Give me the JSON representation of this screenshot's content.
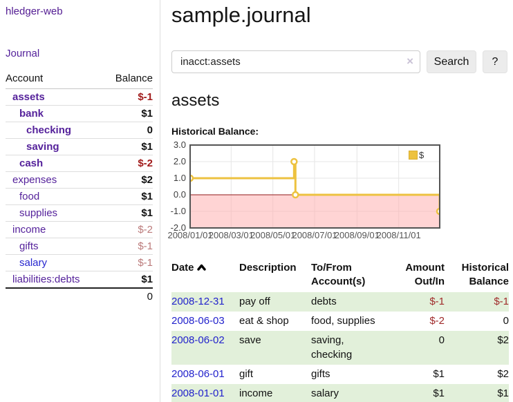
{
  "app": {
    "title": "hledger-web"
  },
  "sidebar": {
    "journal_link": "Journal",
    "accounts_table": {
      "headers": {
        "account": "Account",
        "balance": "Balance"
      },
      "rows": [
        {
          "name": "assets",
          "indent": 1,
          "bold": true,
          "balance": "$-1",
          "style": "neg"
        },
        {
          "name": "bank",
          "indent": 2,
          "bold": true,
          "balance": "$1",
          "style": "pos"
        },
        {
          "name": "checking",
          "indent": 3,
          "bold": true,
          "balance": "0",
          "style": "pos"
        },
        {
          "name": "saving",
          "indent": 3,
          "bold": true,
          "balance": "$1",
          "style": "pos"
        },
        {
          "name": "cash",
          "indent": 2,
          "bold": true,
          "balance": "$-2",
          "style": "neg"
        },
        {
          "name": "expenses",
          "indent": 1,
          "bold": false,
          "balance": "$2",
          "style": "pos"
        },
        {
          "name": "food",
          "indent": 2,
          "bold": false,
          "balance": "$1",
          "style": "pos"
        },
        {
          "name": "supplies",
          "indent": 2,
          "bold": false,
          "balance": "$1",
          "style": "pos"
        },
        {
          "name": "income",
          "indent": 1,
          "bold": false,
          "balance": "$-2",
          "style": "negsoft"
        },
        {
          "name": "gifts",
          "indent": 2,
          "bold": false,
          "balance": "$-1",
          "style": "negsoft"
        },
        {
          "name": "salary",
          "indent": 2,
          "bold": false,
          "balance": "$-1",
          "style": "negsoft",
          "link_color": "blue"
        },
        {
          "name": "liabilities:debts",
          "indent": 1,
          "bold": false,
          "balance": "$1",
          "style": "pos"
        }
      ],
      "total": "0"
    }
  },
  "main": {
    "title": "sample.journal",
    "search": {
      "value": "inacct:assets",
      "clear_icon": "×",
      "button_label": "Search",
      "help_label": "?"
    },
    "account_heading": "assets",
    "chart_label": "Historical Balance:"
  },
  "chart_data": {
    "type": "line",
    "title": "Historical Balance",
    "step": true,
    "series": [
      {
        "name": "$",
        "color": "#edc240",
        "points": [
          {
            "date": "2008-01-01",
            "value": 1
          },
          {
            "date": "2008-06-01",
            "value": 2
          },
          {
            "date": "2008-06-03",
            "value": 0
          },
          {
            "date": "2008-12-31",
            "value": -1
          }
        ]
      }
    ],
    "x_ticks": [
      "2008/01/01",
      "2008/03/01",
      "2008/05/01",
      "2008/07/01",
      "2008/09/01",
      "2008/11/01"
    ],
    "y_ticks": [
      3.0,
      2.0,
      1.0,
      0.0,
      -1.0,
      -2.0
    ],
    "ylim": [
      -2,
      3
    ],
    "x_start": "2008-01-01",
    "x_days": 365,
    "legend": "$",
    "legend_position": "top-right",
    "grid": true,
    "grid_color": "#e6e6e6",
    "border_color": "#545454",
    "zero_line_color": "#8f1a1a",
    "negative_region_color": "rgba(255,170,170,0.5)"
  },
  "register_table": {
    "headers": {
      "date": "Date",
      "description": "Description",
      "accounts": "To/From Account(s)",
      "amount": "Amount Out/In",
      "balance": "Historical Balance"
    },
    "rows": [
      {
        "date": "2008-12-31",
        "description": "pay off",
        "accounts": "debts",
        "amount": "$-1",
        "amount_neg": true,
        "balance": "$-1",
        "balance_neg": true
      },
      {
        "date": "2008-06-03",
        "description": "eat & shop",
        "accounts": "food, supplies",
        "amount": "$-2",
        "amount_neg": true,
        "balance": "0",
        "balance_neg": false
      },
      {
        "date": "2008-06-02",
        "description": "save",
        "accounts": "saving, checking",
        "amount": "0",
        "amount_neg": false,
        "balance": "$2",
        "balance_neg": false
      },
      {
        "date": "2008-06-01",
        "description": "gift",
        "accounts": "gifts",
        "amount": "$1",
        "amount_neg": false,
        "balance": "$2",
        "balance_neg": false
      },
      {
        "date": "2008-01-01",
        "description": "income",
        "accounts": "salary",
        "amount": "$1",
        "amount_neg": false,
        "balance": "$1",
        "balance_neg": false
      }
    ]
  }
}
